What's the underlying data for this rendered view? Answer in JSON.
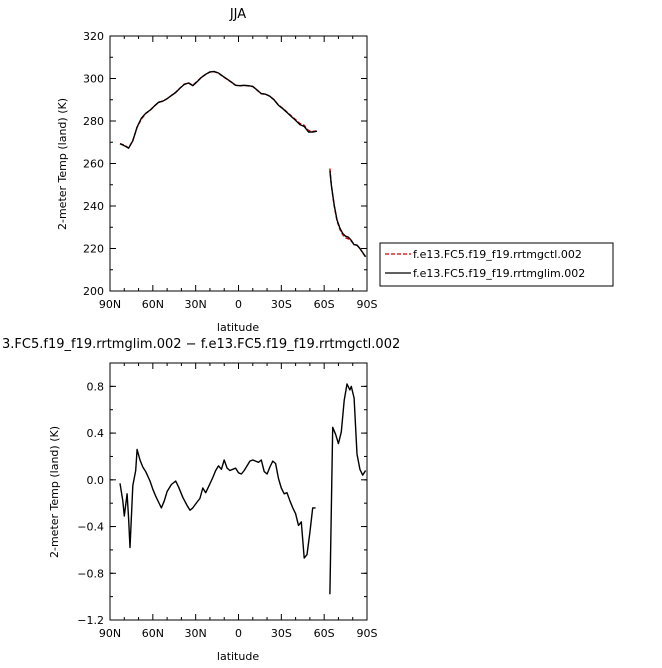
{
  "chart_data": [
    {
      "type": "line",
      "title": "JJA",
      "xlabel": "latitude",
      "ylabel": "2-meter Temp (land) (K)",
      "xlim": [
        90,
        -90
      ],
      "ylim": [
        200,
        320
      ],
      "xticks": [
        90,
        60,
        30,
        0,
        -30,
        -60,
        -90
      ],
      "xtick_labels": [
        "90N",
        "60N",
        "30N",
        "0",
        "30S",
        "60S",
        "90S"
      ],
      "yticks": [
        200,
        220,
        240,
        260,
        280,
        300,
        320
      ],
      "ytick_labels": [
        "200",
        "220",
        "240",
        "260",
        "280",
        "300",
        "320"
      ],
      "legend": "right",
      "series": [
        {
          "name": "f.e13.FC5.f19_f19.rrtmgctl.002",
          "color": "#cc0000",
          "dash": "dashed",
          "segments": [
            [
              [
                83,
                269.3
              ],
              [
                80,
                268.7
              ],
              [
                77,
                267.3
              ],
              [
                74,
                270.8
              ],
              [
                71,
                277
              ],
              [
                68,
                281
              ],
              [
                65,
                283.5
              ],
              [
                62,
                285
              ],
              [
                59,
                287
              ],
              [
                56,
                288.8
              ],
              [
                53,
                289.4
              ],
              [
                50,
                290.5
              ],
              [
                47,
                292
              ],
              [
                44,
                293.5
              ],
              [
                41,
                295.5
              ],
              [
                38,
                297.3
              ],
              [
                35,
                298
              ],
              [
                32,
                296.8
              ],
              [
                29,
                298.7
              ],
              [
                26,
                300.5
              ],
              [
                23,
                302
              ],
              [
                20,
                303
              ],
              [
                17,
                303.2
              ],
              [
                14,
                302.5
              ],
              [
                11,
                301
              ],
              [
                8,
                299.6
              ],
              [
                5,
                298.2
              ],
              [
                2,
                296.8
              ],
              [
                -1,
                296.6
              ],
              [
                -4,
                296.7
              ],
              [
                -7,
                296.5
              ],
              [
                -10,
                296.2
              ],
              [
                -13,
                294.5
              ],
              [
                -16,
                292.8
              ],
              [
                -19,
                292.6
              ],
              [
                -22,
                291.6
              ],
              [
                -25,
                290
              ],
              [
                -28,
                287.5
              ],
              [
                -31,
                286
              ],
              [
                -34,
                284.2
              ],
              [
                -37,
                282.4
              ],
              [
                -40,
                280.6
              ],
              [
                -43,
                278.8
              ],
              [
                -46,
                278
              ],
              [
                -49,
                275.5
              ],
              [
                -52,
                275.1
              ],
              [
                -55,
                275.4
              ]
            ],
            [
              [
                -64,
                257.6
              ],
              [
                -65,
                250
              ],
              [
                -67,
                240
              ],
              [
                -69,
                233
              ],
              [
                -71,
                229
              ],
              [
                -73,
                226.5
              ],
              [
                -75,
                225
              ],
              [
                -77,
                224.5
              ],
              [
                -79,
                223.5
              ],
              [
                -81,
                222
              ],
              [
                -83,
                221.5
              ],
              [
                -85,
                220
              ],
              [
                -87,
                218
              ],
              [
                -89,
                216
              ]
            ]
          ]
        },
        {
          "name": "f.e13.FC5.f19_f19.rrtmglim.002",
          "color": "#000000",
          "dash": "solid",
          "segments": [
            [
              [
                83,
                269.3
              ],
              [
                80,
                268.4
              ],
              [
                77,
                267.2
              ],
              [
                74,
                270.7
              ],
              [
                71,
                277.2
              ],
              [
                68,
                281.3
              ],
              [
                65,
                283.6
              ],
              [
                62,
                285.1
              ],
              [
                59,
                287
              ],
              [
                56,
                288.8
              ],
              [
                53,
                289.3
              ],
              [
                50,
                290.5
              ],
              [
                47,
                292
              ],
              [
                44,
                293.4
              ],
              [
                41,
                295.5
              ],
              [
                38,
                297.2
              ],
              [
                35,
                297.9
              ],
              [
                32,
                296.6
              ],
              [
                29,
                298.5
              ],
              [
                26,
                300.5
              ],
              [
                23,
                302
              ],
              [
                20,
                303.1
              ],
              [
                17,
                303.3
              ],
              [
                14,
                302.6
              ],
              [
                11,
                301.1
              ],
              [
                8,
                299.7
              ],
              [
                5,
                298.3
              ],
              [
                2,
                296.8
              ],
              [
                -1,
                296.6
              ],
              [
                -4,
                296.8
              ],
              [
                -7,
                296.6
              ],
              [
                -10,
                296.3
              ],
              [
                -13,
                294.6
              ],
              [
                -16,
                292.9
              ],
              [
                -19,
                292.6
              ],
              [
                -22,
                291.6
              ],
              [
                -25,
                289.9
              ],
              [
                -28,
                287.4
              ],
              [
                -31,
                285.8
              ],
              [
                -34,
                284
              ],
              [
                -37,
                282.1
              ],
              [
                -40,
                280.3
              ],
              [
                -43,
                278.3
              ],
              [
                -46,
                277.4
              ],
              [
                -49,
                274.8
              ],
              [
                -52,
                274.8
              ],
              [
                -55,
                275.2
              ]
            ],
            [
              [
                -64,
                256.6
              ],
              [
                -65,
                250
              ],
              [
                -67,
                240.4
              ],
              [
                -69,
                233.5
              ],
              [
                -71,
                229.6
              ],
              [
                -73,
                227.1
              ],
              [
                -75,
                225.8
              ],
              [
                -77,
                225.3
              ],
              [
                -79,
                223.8
              ],
              [
                -81,
                221.8
              ],
              [
                -83,
                221.6
              ],
              [
                -85,
                220
              ],
              [
                -87,
                218.1
              ],
              [
                -89,
                216.1
              ]
            ]
          ]
        }
      ]
    },
    {
      "type": "line",
      "title": "3.FC5.f19_f19.rrtmglim.002 − f.e13.FC5.f19_f19.rrtmgctl.002",
      "xlabel": "latitude",
      "ylabel": "2-meter Temp (land) (K)",
      "xlim": [
        90,
        -90
      ],
      "ylim": [
        -1.2,
        1.0
      ],
      "xticks": [
        90,
        60,
        30,
        0,
        -30,
        -60,
        -90
      ],
      "xtick_labels": [
        "90N",
        "60N",
        "30N",
        "0",
        "30S",
        "60S",
        "90S"
      ],
      "yticks": [
        -1.2,
        -0.8,
        -0.4,
        0.0,
        0.4,
        0.8
      ],
      "ytick_labels": [
        "−1.2",
        "−0.8",
        "−0.4",
        "0.0",
        "0.4",
        "0.8"
      ],
      "series": [
        {
          "color": "#000000",
          "dash": "solid",
          "segments": [
            [
              [
                83,
                -0.03
              ],
              [
                81,
                -0.18
              ],
              [
                80,
                -0.31
              ],
              [
                78,
                -0.12
              ],
              [
                77,
                -0.33
              ],
              [
                76,
                -0.58
              ],
              [
                74,
                -0.05
              ],
              [
                72,
                0.08
              ],
              [
                71,
                0.26
              ],
              [
                69,
                0.17
              ],
              [
                67,
                0.11
              ],
              [
                65,
                0.07
              ],
              [
                62,
                -0.01
              ],
              [
                60,
                -0.08
              ],
              [
                58,
                -0.14
              ],
              [
                56,
                -0.19
              ],
              [
                54,
                -0.24
              ],
              [
                52,
                -0.18
              ],
              [
                50,
                -0.1
              ],
              [
                47,
                -0.04
              ],
              [
                44,
                -0.01
              ],
              [
                42,
                -0.06
              ],
              [
                39,
                -0.15
              ],
              [
                36,
                -0.22
              ],
              [
                34,
                -0.26
              ],
              [
                32,
                -0.24
              ],
              [
                29,
                -0.19
              ],
              [
                27,
                -0.16
              ],
              [
                25,
                -0.07
              ],
              [
                23,
                -0.11
              ],
              [
                21,
                -0.06
              ],
              [
                18,
                0.02
              ],
              [
                16,
                0.08
              ],
              [
                14,
                0.12
              ],
              [
                12,
                0.09
              ],
              [
                10,
                0.17
              ],
              [
                8,
                0.1
              ],
              [
                6,
                0.08
              ],
              [
                4,
                0.09
              ],
              [
                2,
                0.1
              ],
              [
                0,
                0.06
              ],
              [
                -2,
                0.05
              ],
              [
                -4,
                0.08
              ],
              [
                -6,
                0.12
              ],
              [
                -8,
                0.16
              ],
              [
                -10,
                0.17
              ],
              [
                -12,
                0.16
              ],
              [
                -14,
                0.15
              ],
              [
                -16,
                0.17
              ],
              [
                -18,
                0.07
              ],
              [
                -20,
                0.05
              ],
              [
                -22,
                0.11
              ],
              [
                -24,
                0.16
              ],
              [
                -26,
                0.14
              ],
              [
                -28,
                0.01
              ],
              [
                -30,
                -0.07
              ],
              [
                -32,
                -0.12
              ],
              [
                -34,
                -0.11
              ],
              [
                -36,
                -0.18
              ],
              [
                -38,
                -0.24
              ],
              [
                -40,
                -0.29
              ],
              [
                -42,
                -0.39
              ],
              [
                -44,
                -0.36
              ],
              [
                -46,
                -0.67
              ],
              [
                -48,
                -0.64
              ],
              [
                -50,
                -0.45
              ],
              [
                -52,
                -0.24
              ],
              [
                -54,
                -0.24
              ]
            ],
            [
              [
                -64,
                -0.98
              ],
              [
                -66,
                0.45
              ],
              [
                -68,
                0.39
              ],
              [
                -70,
                0.31
              ],
              [
                -72,
                0.41
              ],
              [
                -74,
                0.68
              ],
              [
                -76,
                0.82
              ],
              [
                -78,
                0.77
              ],
              [
                -79,
                0.8
              ],
              [
                -81,
                0.7
              ],
              [
                -83,
                0.22
              ],
              [
                -85,
                0.09
              ],
              [
                -87,
                0.04
              ],
              [
                -89,
                0.08
              ]
            ]
          ]
        }
      ]
    }
  ]
}
